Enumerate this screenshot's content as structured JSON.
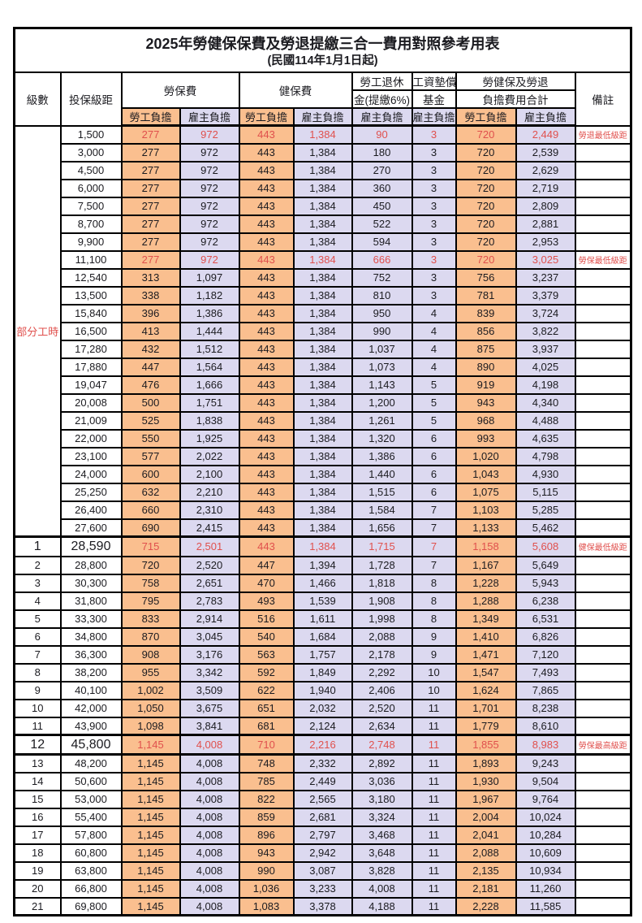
{
  "colors": {
    "employee_bg": "#FABF8F",
    "employer_bg": "#DCD9F0",
    "highlight_red": "#E0504D"
  },
  "table": {
    "title": "2025年勞健保保費及勞退提繳三合一費用對照參考用表",
    "subtitle": "(民國114年1月1日起)",
    "part_time_label": "部分工時",
    "columns": {
      "level": "級數",
      "bracket": "投保級距",
      "labor_ins": "勞保費",
      "health_ins": "健保費",
      "pension_line1": "勞工退休",
      "pension_line2": "金(提繳6%)",
      "fund_line1": "工資墊償",
      "fund_line2": "基金",
      "total_line1": "勞健保及勞退",
      "total_line2": "負擔費用合計",
      "remark": "備註",
      "employee": "勞工負擔",
      "employer": "雇主負擔"
    },
    "rows": [
      {
        "lv": "",
        "br": "1,500",
        "c": [
          "277",
          "972",
          "443",
          "1,384",
          "90",
          "3",
          "720",
          "2,449"
        ],
        "note": "勞退最低級距",
        "red": true
      },
      {
        "lv": "",
        "br": "3,000",
        "c": [
          "277",
          "972",
          "443",
          "1,384",
          "180",
          "3",
          "720",
          "2,539"
        ],
        "note": ""
      },
      {
        "lv": "",
        "br": "4,500",
        "c": [
          "277",
          "972",
          "443",
          "1,384",
          "270",
          "3",
          "720",
          "2,629"
        ],
        "note": ""
      },
      {
        "lv": "",
        "br": "6,000",
        "c": [
          "277",
          "972",
          "443",
          "1,384",
          "360",
          "3",
          "720",
          "2,719"
        ],
        "note": ""
      },
      {
        "lv": "",
        "br": "7,500",
        "c": [
          "277",
          "972",
          "443",
          "1,384",
          "450",
          "3",
          "720",
          "2,809"
        ],
        "note": ""
      },
      {
        "lv": "",
        "br": "8,700",
        "c": [
          "277",
          "972",
          "443",
          "1,384",
          "522",
          "3",
          "720",
          "2,881"
        ],
        "note": ""
      },
      {
        "lv": "",
        "br": "9,900",
        "c": [
          "277",
          "972",
          "443",
          "1,384",
          "594",
          "3",
          "720",
          "2,953"
        ],
        "note": ""
      },
      {
        "lv": "",
        "br": "11,100",
        "c": [
          "277",
          "972",
          "443",
          "1,384",
          "666",
          "3",
          "720",
          "3,025"
        ],
        "note": "勞保最低級距",
        "red": true
      },
      {
        "lv": "",
        "br": "12,540",
        "c": [
          "313",
          "1,097",
          "443",
          "1,384",
          "752",
          "3",
          "756",
          "3,237"
        ],
        "note": ""
      },
      {
        "lv": "",
        "br": "13,500",
        "c": [
          "338",
          "1,182",
          "443",
          "1,384",
          "810",
          "3",
          "781",
          "3,379"
        ],
        "note": ""
      },
      {
        "lv": "",
        "br": "15,840",
        "c": [
          "396",
          "1,386",
          "443",
          "1,384",
          "950",
          "4",
          "839",
          "3,724"
        ],
        "note": ""
      },
      {
        "lv": "",
        "br": "16,500",
        "c": [
          "413",
          "1,444",
          "443",
          "1,384",
          "990",
          "4",
          "856",
          "3,822"
        ],
        "note": ""
      },
      {
        "lv": "",
        "br": "17,280",
        "c": [
          "432",
          "1,512",
          "443",
          "1,384",
          "1,037",
          "4",
          "875",
          "3,937"
        ],
        "note": ""
      },
      {
        "lv": "",
        "br": "17,880",
        "c": [
          "447",
          "1,564",
          "443",
          "1,384",
          "1,073",
          "4",
          "890",
          "4,025"
        ],
        "note": ""
      },
      {
        "lv": "",
        "br": "19,047",
        "c": [
          "476",
          "1,666",
          "443",
          "1,384",
          "1,143",
          "5",
          "919",
          "4,198"
        ],
        "note": ""
      },
      {
        "lv": "",
        "br": "20,008",
        "c": [
          "500",
          "1,751",
          "443",
          "1,384",
          "1,200",
          "5",
          "943",
          "4,340"
        ],
        "note": ""
      },
      {
        "lv": "",
        "br": "21,009",
        "c": [
          "525",
          "1,838",
          "443",
          "1,384",
          "1,261",
          "5",
          "968",
          "4,488"
        ],
        "note": ""
      },
      {
        "lv": "",
        "br": "22,000",
        "c": [
          "550",
          "1,925",
          "443",
          "1,384",
          "1,320",
          "6",
          "993",
          "4,635"
        ],
        "note": ""
      },
      {
        "lv": "",
        "br": "23,100",
        "c": [
          "577",
          "2,022",
          "443",
          "1,384",
          "1,386",
          "6",
          "1,020",
          "4,798"
        ],
        "note": ""
      },
      {
        "lv": "",
        "br": "24,000",
        "c": [
          "600",
          "2,100",
          "443",
          "1,384",
          "1,440",
          "6",
          "1,043",
          "4,930"
        ],
        "note": ""
      },
      {
        "lv": "",
        "br": "25,250",
        "c": [
          "632",
          "2,210",
          "443",
          "1,384",
          "1,515",
          "6",
          "1,075",
          "5,115"
        ],
        "note": ""
      },
      {
        "lv": "",
        "br": "26,400",
        "c": [
          "660",
          "2,310",
          "443",
          "1,384",
          "1,584",
          "7",
          "1,103",
          "5,285"
        ],
        "note": ""
      },
      {
        "lv": "",
        "br": "27,600",
        "c": [
          "690",
          "2,415",
          "443",
          "1,384",
          "1,656",
          "7",
          "1,133",
          "5,462"
        ],
        "note": ""
      },
      {
        "lv": "1",
        "br": "28,590",
        "c": [
          "715",
          "2,501",
          "443",
          "1,384",
          "1,715",
          "7",
          "1,158",
          "5,608"
        ],
        "note": "健保最低級距",
        "red": true,
        "em": true,
        "thick_top": true
      },
      {
        "lv": "2",
        "br": "28,800",
        "c": [
          "720",
          "2,520",
          "447",
          "1,394",
          "1,728",
          "7",
          "1,167",
          "5,649"
        ],
        "note": ""
      },
      {
        "lv": "3",
        "br": "30,300",
        "c": [
          "758",
          "2,651",
          "470",
          "1,466",
          "1,818",
          "8",
          "1,228",
          "5,943"
        ],
        "note": ""
      },
      {
        "lv": "4",
        "br": "31,800",
        "c": [
          "795",
          "2,783",
          "493",
          "1,539",
          "1,908",
          "8",
          "1,288",
          "6,238"
        ],
        "note": ""
      },
      {
        "lv": "5",
        "br": "33,300",
        "c": [
          "833",
          "2,914",
          "516",
          "1,611",
          "1,998",
          "8",
          "1,349",
          "6,531"
        ],
        "note": ""
      },
      {
        "lv": "6",
        "br": "34,800",
        "c": [
          "870",
          "3,045",
          "540",
          "1,684",
          "2,088",
          "9",
          "1,410",
          "6,826"
        ],
        "note": ""
      },
      {
        "lv": "7",
        "br": "36,300",
        "c": [
          "908",
          "3,176",
          "563",
          "1,757",
          "2,178",
          "9",
          "1,471",
          "7,120"
        ],
        "note": ""
      },
      {
        "lv": "8",
        "br": "38,200",
        "c": [
          "955",
          "3,342",
          "592",
          "1,849",
          "2,292",
          "10",
          "1,547",
          "7,493"
        ],
        "note": ""
      },
      {
        "lv": "9",
        "br": "40,100",
        "c": [
          "1,002",
          "3,509",
          "622",
          "1,940",
          "2,406",
          "10",
          "1,624",
          "7,865"
        ],
        "note": ""
      },
      {
        "lv": "10",
        "br": "42,000",
        "c": [
          "1,050",
          "3,675",
          "651",
          "2,032",
          "2,520",
          "11",
          "1,701",
          "8,238"
        ],
        "note": ""
      },
      {
        "lv": "11",
        "br": "43,900",
        "c": [
          "1,098",
          "3,841",
          "681",
          "2,124",
          "2,634",
          "11",
          "1,779",
          "8,610"
        ],
        "note": ""
      },
      {
        "lv": "12",
        "br": "45,800",
        "c": [
          "1,145",
          "4,008",
          "710",
          "2,216",
          "2,748",
          "11",
          "1,855",
          "8,983"
        ],
        "note": "勞保最高級距",
        "red": true,
        "em": true,
        "thick_top": true,
        "thick_bottom": true
      },
      {
        "lv": "13",
        "br": "48,200",
        "c": [
          "1,145",
          "4,008",
          "748",
          "2,332",
          "2,892",
          "11",
          "1,893",
          "9,243"
        ],
        "note": ""
      },
      {
        "lv": "14",
        "br": "50,600",
        "c": [
          "1,145",
          "4,008",
          "785",
          "2,449",
          "3,036",
          "11",
          "1,930",
          "9,504"
        ],
        "note": ""
      },
      {
        "lv": "15",
        "br": "53,000",
        "c": [
          "1,145",
          "4,008",
          "822",
          "2,565",
          "3,180",
          "11",
          "1,967",
          "9,764"
        ],
        "note": ""
      },
      {
        "lv": "16",
        "br": "55,400",
        "c": [
          "1,145",
          "4,008",
          "859",
          "2,681",
          "3,324",
          "11",
          "2,004",
          "10,024"
        ],
        "note": ""
      },
      {
        "lv": "17",
        "br": "57,800",
        "c": [
          "1,145",
          "4,008",
          "896",
          "2,797",
          "3,468",
          "11",
          "2,041",
          "10,284"
        ],
        "note": ""
      },
      {
        "lv": "18",
        "br": "60,800",
        "c": [
          "1,145",
          "4,008",
          "943",
          "2,942",
          "3,648",
          "11",
          "2,088",
          "10,609"
        ],
        "note": ""
      },
      {
        "lv": "19",
        "br": "63,800",
        "c": [
          "1,145",
          "4,008",
          "990",
          "3,087",
          "3,828",
          "11",
          "2,135",
          "10,934"
        ],
        "note": ""
      },
      {
        "lv": "20",
        "br": "66,800",
        "c": [
          "1,145",
          "4,008",
          "1,036",
          "3,233",
          "4,008",
          "11",
          "2,181",
          "11,260"
        ],
        "note": ""
      },
      {
        "lv": "21",
        "br": "69,800",
        "c": [
          "1,145",
          "4,008",
          "1,083",
          "3,378",
          "4,188",
          "11",
          "2,228",
          "11,585"
        ],
        "note": ""
      }
    ]
  }
}
